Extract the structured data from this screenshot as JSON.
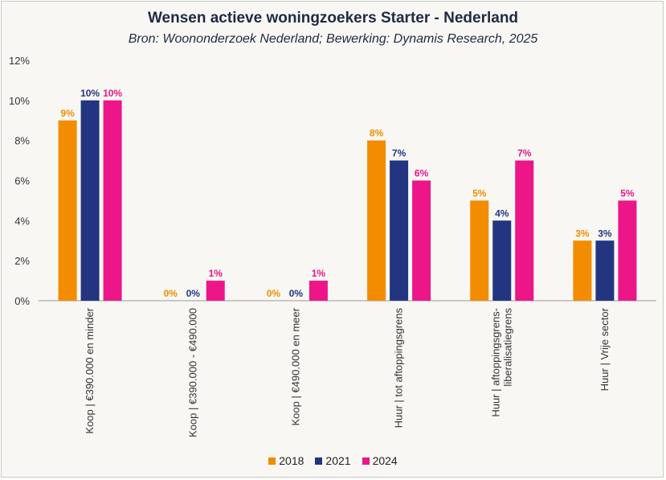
{
  "chart_data": {
    "type": "bar",
    "title": "Wensen actieve woningzoekers Starter - Nederland",
    "subtitle": "Bron: Woononderzoek Nederland; Bewerking: Dynamis Research, 2025",
    "xlabel": "",
    "ylabel": "",
    "ylim": [
      0,
      12
    ],
    "yticks": [
      "0%",
      "2%",
      "4%",
      "6%",
      "8%",
      "10%",
      "12%"
    ],
    "grid": false,
    "legend_position": "bottom",
    "categories": [
      [
        "Koop | €390.000 en minder"
      ],
      [
        "Koop | €390.000 - €490.000"
      ],
      [
        "Koop | €490.000 en meer"
      ],
      [
        "Huur | tot aftoppingsgrens"
      ],
      [
        "Huur | aftoppingsgrens-",
        "liberalisatiegrens"
      ],
      [
        "Huur | Vrije sector"
      ]
    ],
    "series": [
      {
        "name": "2018",
        "color": "#f28c00",
        "values": [
          9,
          0,
          0,
          8,
          5,
          3
        ],
        "labels": [
          "9%",
          "0%",
          "0%",
          "8%",
          "5%",
          "3%"
        ]
      },
      {
        "name": "2021",
        "color": "#233580",
        "values": [
          10,
          0,
          0,
          7,
          4,
          3
        ],
        "labels": [
          "10%",
          "0%",
          "0%",
          "7%",
          "4%",
          "3%"
        ]
      },
      {
        "name": "2024",
        "color": "#ec1689",
        "values": [
          10,
          1,
          1,
          6,
          7,
          5
        ],
        "labels": [
          "10%",
          "1%",
          "1%",
          "6%",
          "7%",
          "5%"
        ]
      }
    ]
  }
}
